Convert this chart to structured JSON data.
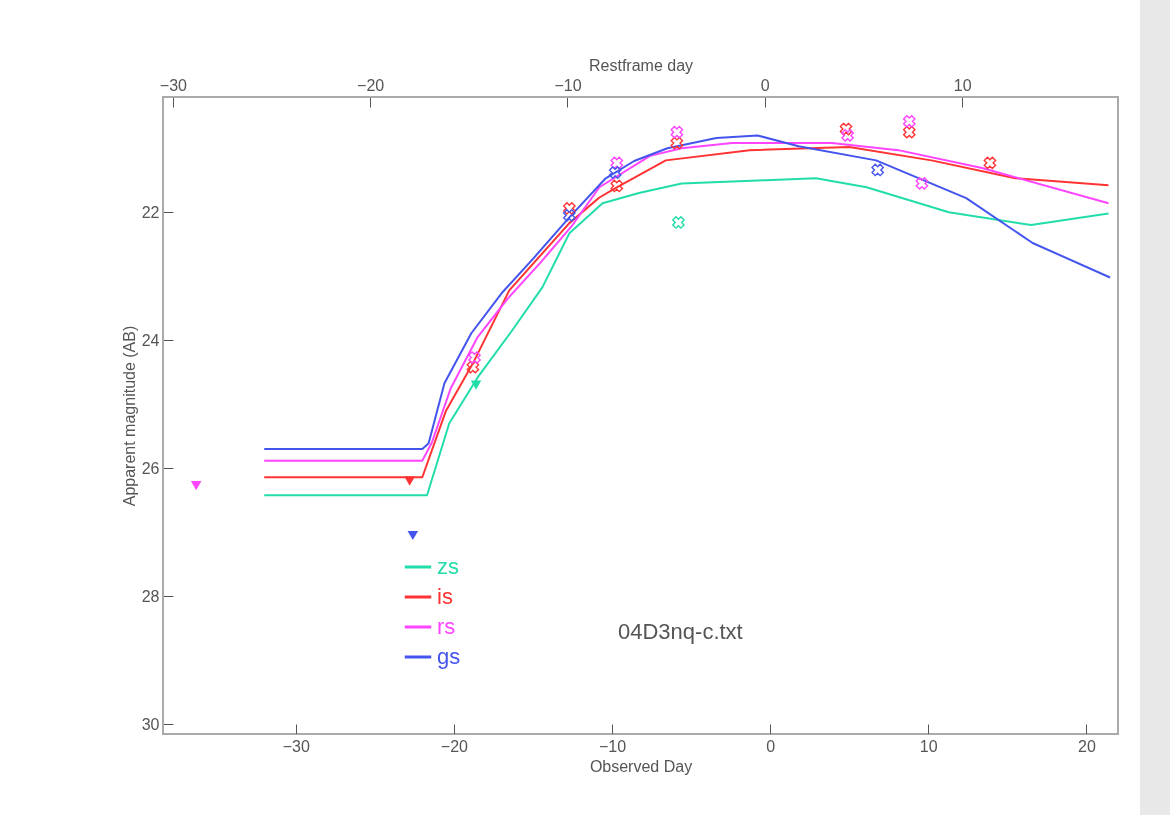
{
  "chart_data": {
    "type": "line",
    "xlabel": "Observed Day",
    "ylabel": "Apparent magnitude (AB)",
    "x2label": "Restframe day",
    "xlim": [
      -38.4,
      22
    ],
    "xticks": [
      -30,
      -20,
      -10,
      0,
      10,
      20
    ],
    "ylim": [
      30.15,
      20.2
    ],
    "yticks": [
      22,
      24,
      26,
      28,
      30
    ],
    "x2lim": [
      -30.5,
      17.9
    ],
    "x2ticks": [
      -30,
      -20,
      -10,
      0,
      10
    ],
    "grid": false,
    "legend": "bottom left",
    "line_style": "solid",
    "annotations": [
      "04D3nq-c.txt"
    ],
    "series": [
      {
        "name": "zs",
        "color": "#22ddaa",
        "x": [
          -32.0,
          -21.7,
          -20.3,
          -18.5,
          -16.3,
          -14.4,
          -12.7,
          -10.6,
          -8.3,
          -5.6,
          -0.3,
          2.9,
          6.1,
          11.3,
          16.5,
          21.4
        ],
        "values": [
          26.42,
          26.42,
          25.3,
          24.58,
          23.84,
          23.17,
          22.33,
          21.86,
          21.7,
          21.55,
          21.5,
          21.47,
          21.61,
          22.0,
          22.2,
          22.02
        ]
      },
      {
        "name": "is",
        "color": "#ff3333",
        "x": [
          -32.0,
          -22.0,
          -20.5,
          -18.8,
          -16.5,
          -12.7,
          -10.8,
          -9.7,
          -6.6,
          -1.3,
          5.0,
          10.2,
          15.5,
          21.4
        ],
        "values": [
          26.14,
          26.14,
          25.1,
          24.36,
          23.22,
          22.17,
          21.77,
          21.61,
          21.19,
          21.03,
          20.98,
          21.19,
          21.47,
          21.58
        ]
      },
      {
        "name": "rs",
        "color": "#ff44ff",
        "x": [
          -32.0,
          -22.0,
          -21.4,
          -20.2,
          -18.5,
          -16.6,
          -14.5,
          -12.5,
          -10.8,
          -7.6,
          -5.6,
          -2.4,
          3.9,
          8.1,
          13.4,
          21.4
        ],
        "values": [
          25.88,
          25.88,
          25.6,
          24.75,
          23.95,
          23.35,
          22.78,
          22.2,
          21.61,
          21.12,
          21.0,
          20.92,
          20.92,
          21.03,
          21.31,
          21.86
        ]
      },
      {
        "name": "gs",
        "color": "#4455ee",
        "x": [
          -32.0,
          -22.0,
          -21.6,
          -20.6,
          -18.9,
          -17.0,
          -14.9,
          -12.7,
          -10.4,
          -8.6,
          -6.5,
          -3.4,
          -0.8,
          1.8,
          6.7,
          12.4,
          16.6,
          21.5
        ],
        "values": [
          25.7,
          25.7,
          25.61,
          24.67,
          23.89,
          23.27,
          22.7,
          22.08,
          21.47,
          21.2,
          21.0,
          20.84,
          20.8,
          20.97,
          21.19,
          21.78,
          22.48,
          23.02
        ]
      },
      {
        "type": "scatter",
        "marker": "cross",
        "color": "#22ddaa",
        "x": [
          -5.8
        ],
        "values": [
          22.16
        ]
      },
      {
        "type": "scatter",
        "marker": "cross",
        "color": "#ff3333",
        "x": [
          -18.8,
          -12.7,
          -9.7,
          -5.9,
          4.8,
          8.8,
          13.9
        ],
        "values": [
          24.42,
          21.94,
          21.59,
          20.92,
          20.7,
          20.75,
          21.23
        ]
      },
      {
        "type": "scatter",
        "marker": "cross",
        "color": "#ff44ff",
        "x": [
          -18.7,
          -9.7,
          -5.9,
          4.9,
          8.8,
          9.6
        ],
        "values": [
          24.27,
          21.23,
          20.75,
          20.8,
          20.58,
          21.55
        ]
      },
      {
        "type": "scatter",
        "marker": "cross",
        "color": "#4455ee",
        "x": [
          -12.7,
          -9.8,
          6.8
        ],
        "values": [
          22.05,
          21.38,
          21.34
        ]
      },
      {
        "type": "scatter",
        "marker": "triangle",
        "color": "#22ddaa",
        "x": [
          -18.6
        ],
        "values": [
          24.7
        ]
      },
      {
        "type": "scatter",
        "marker": "triangle",
        "color": "#ff3333",
        "x": [
          -22.8
        ],
        "values": [
          26.2
        ]
      },
      {
        "type": "scatter",
        "marker": "triangle",
        "color": "#ff44ff",
        "x": [
          -36.3
        ],
        "values": [
          26.27
        ]
      },
      {
        "type": "scatter",
        "marker": "triangle",
        "color": "#4455ee",
        "x": [
          -22.6
        ],
        "values": [
          27.05
        ]
      }
    ]
  }
}
